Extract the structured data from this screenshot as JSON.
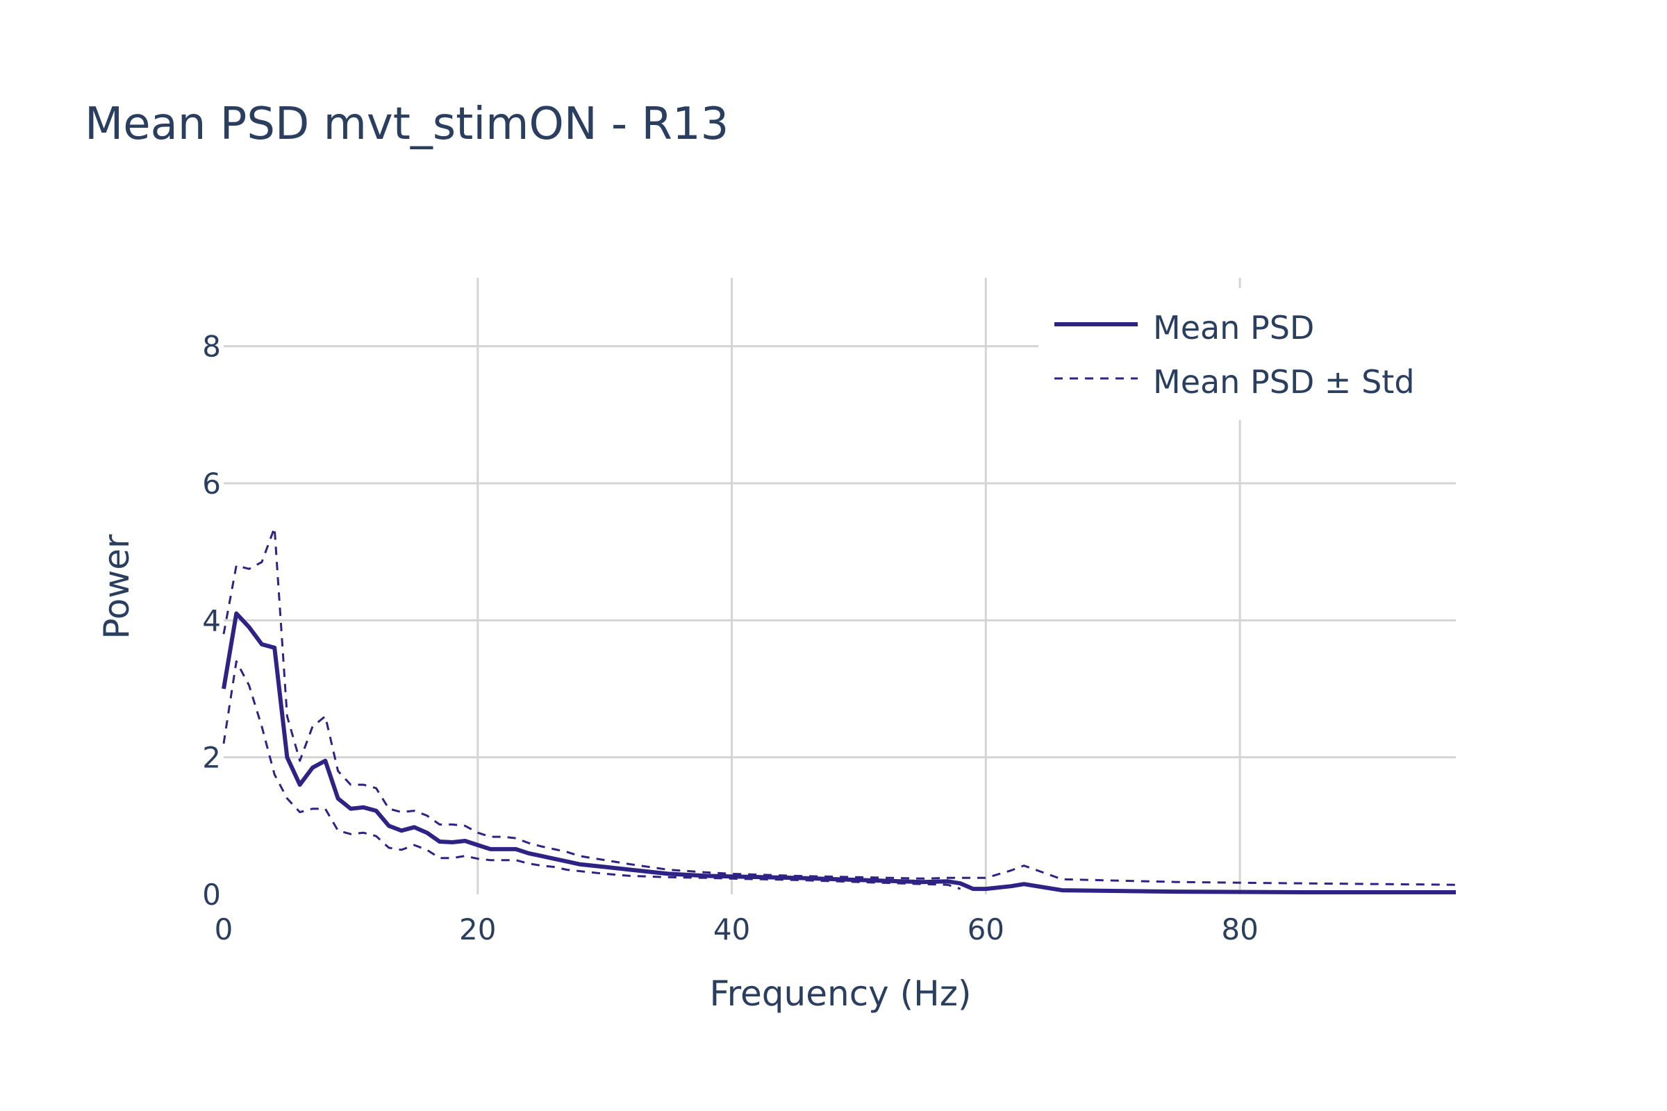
{
  "chart_data": {
    "type": "line",
    "title": "Mean PSD mvt_stimON - R13",
    "xlabel": "Frequency (Hz)",
    "ylabel": "Power",
    "xlim": [
      0,
      97
    ],
    "ylim": [
      0,
      9
    ],
    "xticks": [
      0,
      20,
      40,
      60,
      80
    ],
    "yticks": [
      0,
      2,
      4,
      6,
      8
    ],
    "grid": true,
    "legend_position": "top-right",
    "colors": {
      "series": "#2e2384",
      "text": "#2a3f5f",
      "grid": "#d4d4d4"
    },
    "series": [
      {
        "name": "Mean PSD",
        "style": "solid",
        "x": [
          0,
          1,
          2,
          3,
          4,
          5,
          6,
          7,
          8,
          9,
          10,
          11,
          12,
          13,
          14,
          15,
          16,
          17,
          18,
          19,
          20,
          21,
          22,
          23,
          24,
          25,
          26,
          27,
          28,
          30,
          32,
          35,
          38,
          40,
          45,
          50,
          55,
          57,
          58,
          59,
          60,
          62,
          63,
          66,
          75,
          85,
          97
        ],
        "y": [
          3.0,
          4.1,
          3.9,
          3.65,
          3.6,
          2.0,
          1.6,
          1.85,
          1.95,
          1.4,
          1.25,
          1.27,
          1.22,
          1.0,
          0.93,
          0.98,
          0.9,
          0.77,
          0.76,
          0.78,
          0.72,
          0.66,
          0.66,
          0.66,
          0.6,
          0.56,
          0.52,
          0.48,
          0.44,
          0.4,
          0.36,
          0.3,
          0.27,
          0.26,
          0.24,
          0.21,
          0.18,
          0.19,
          0.16,
          0.08,
          0.08,
          0.12,
          0.15,
          0.06,
          0.04,
          0.03,
          0.03
        ]
      },
      {
        "name": "Mean PSD ± Std",
        "style": "dash",
        "x": [
          0,
          1,
          2,
          3,
          4,
          5,
          6,
          7,
          8,
          9,
          10,
          11,
          12,
          13,
          14,
          15,
          16,
          17,
          18,
          19,
          20,
          21,
          22,
          23,
          24,
          25,
          26,
          27,
          28,
          30,
          32,
          35,
          38,
          40,
          45,
          50,
          55,
          57,
          58,
          59,
          60,
          62,
          63,
          66,
          75,
          85,
          97
        ],
        "y": [
          3.8,
          4.8,
          4.75,
          4.85,
          5.35,
          2.6,
          1.95,
          2.45,
          2.6,
          1.8,
          1.6,
          1.6,
          1.55,
          1.25,
          1.2,
          1.22,
          1.15,
          1.02,
          1.02,
          1.0,
          0.9,
          0.84,
          0.84,
          0.82,
          0.75,
          0.7,
          0.66,
          0.62,
          0.56,
          0.5,
          0.44,
          0.36,
          0.32,
          0.3,
          0.27,
          0.25,
          0.23,
          0.24,
          0.24,
          0.24,
          0.24,
          0.35,
          0.42,
          0.22,
          0.18,
          0.16,
          0.14
        ]
      },
      {
        "style": "dash",
        "x": [
          0,
          1,
          2,
          3,
          4,
          5,
          6,
          7,
          8,
          9,
          10,
          11,
          12,
          13,
          14,
          15,
          16,
          17,
          18,
          19,
          20,
          21,
          22,
          23,
          24,
          25,
          26,
          27,
          28,
          30,
          32,
          35,
          38,
          40,
          45,
          50,
          55,
          57,
          58
        ],
        "y": [
          2.2,
          3.4,
          3.05,
          2.45,
          1.75,
          1.4,
          1.2,
          1.25,
          1.25,
          0.93,
          0.88,
          0.9,
          0.85,
          0.68,
          0.65,
          0.72,
          0.65,
          0.53,
          0.53,
          0.56,
          0.52,
          0.5,
          0.5,
          0.5,
          0.45,
          0.42,
          0.4,
          0.36,
          0.34,
          0.3,
          0.27,
          0.25,
          0.24,
          0.23,
          0.21,
          0.18,
          0.15,
          0.14,
          0.08
        ]
      }
    ]
  }
}
